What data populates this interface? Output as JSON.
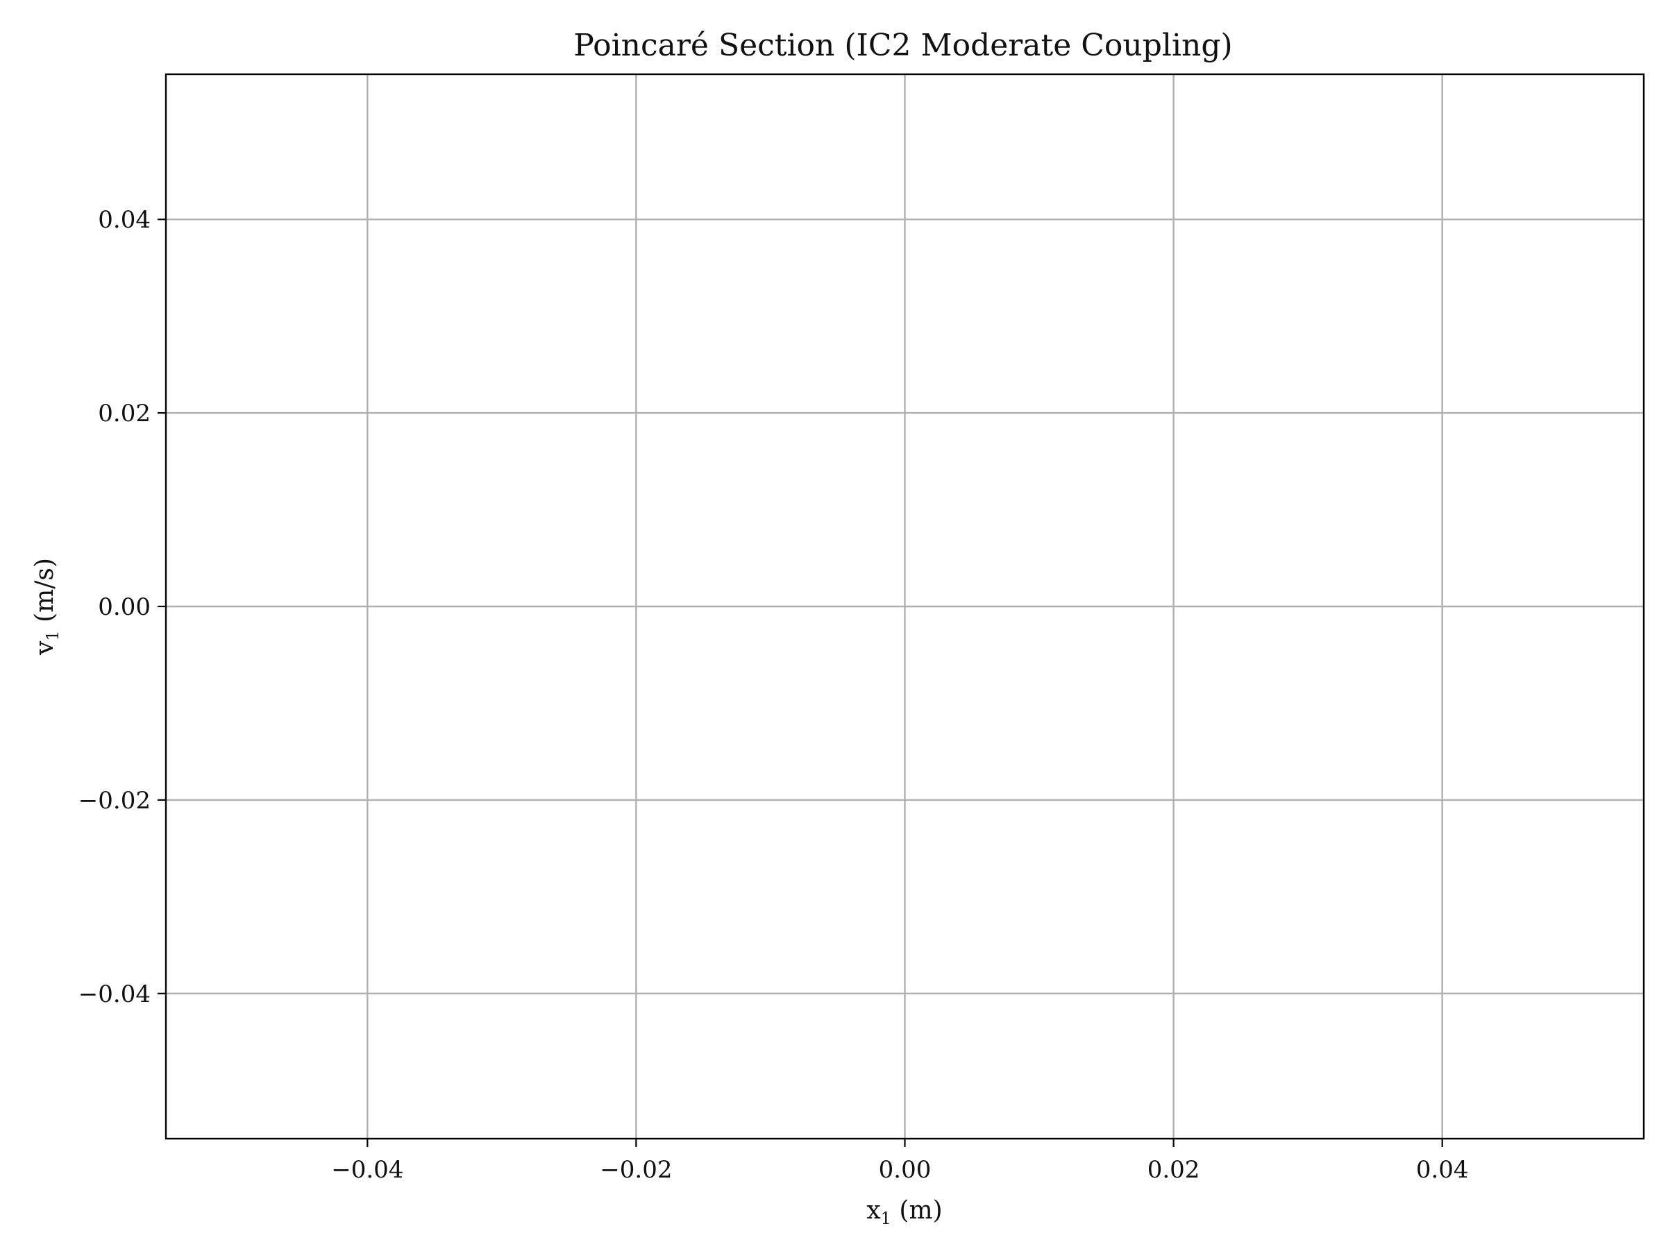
{
  "chart_data": {
    "type": "scatter",
    "title": "Poincaré Section (IC2 Moderate Coupling)",
    "xlabel": {
      "base": "x",
      "subscript": "1",
      "unit": " (m)"
    },
    "ylabel": {
      "base": "v",
      "subscript": "1",
      "unit": " (m/s)"
    },
    "xlim": [
      -0.055,
      0.055
    ],
    "ylim": [
      -0.055,
      0.055
    ],
    "xticks": [
      -0.04,
      -0.02,
      0.0,
      0.02,
      0.04
    ],
    "yticks": [
      -0.04,
      -0.02,
      0.0,
      0.02,
      0.04
    ],
    "xtick_labels": [
      "−0.04",
      "−0.02",
      "0.00",
      "0.02",
      "0.04"
    ],
    "ytick_labels": [
      "−0.04",
      "−0.02",
      "0.00",
      "0.02",
      "0.04"
    ],
    "grid": true,
    "series": [
      {
        "x": [],
        "y": []
      }
    ]
  }
}
